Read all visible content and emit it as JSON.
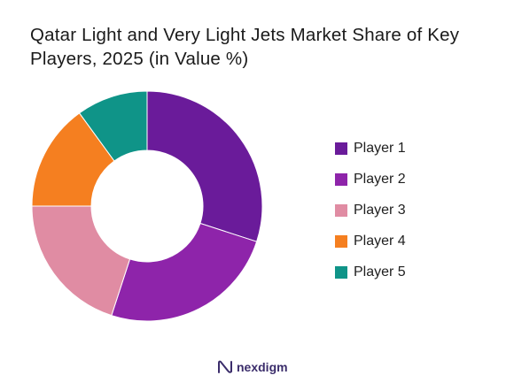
{
  "chart_data": {
    "type": "donut",
    "title": "Qatar Light and Very Light Jets Market Share of Key Players, 2025 (in Value %)",
    "title_lines": [
      "Qatar Light and Very Light Jets Market Share of Key",
      "Players, 2025 (in Value %)"
    ],
    "categories": [
      "Player 1",
      "Player 2",
      "Player 3",
      "Player 4",
      "Player 5"
    ],
    "values": [
      30,
      25,
      20,
      15,
      10
    ],
    "unit": "%",
    "colors": [
      "#6a1b9a",
      "#8e24aa",
      "#e08ca3",
      "#f57f20",
      "#0f9488"
    ],
    "legend_position": "right"
  },
  "brand": {
    "name": "nexdigm",
    "icon": "nexdigm-logo-icon"
  }
}
